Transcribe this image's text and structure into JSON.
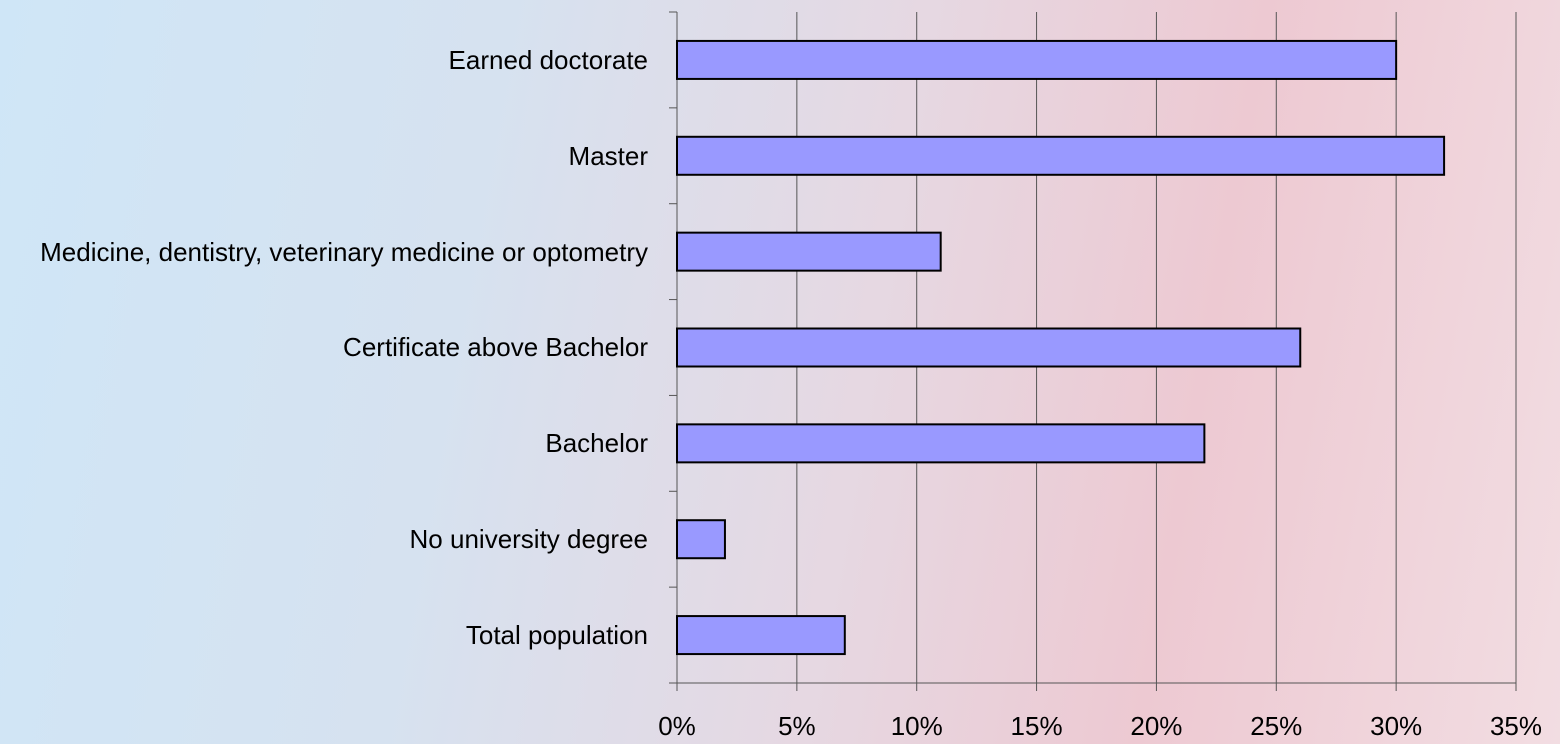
{
  "chart_data": {
    "type": "bar",
    "orientation": "horizontal",
    "categories": [
      "Earned doctorate",
      "Master",
      "Medicine, dentistry, veterinary medicine or optometry",
      "Certificate above Bachelor",
      "Bachelor",
      "No university degree",
      "Total population"
    ],
    "values": [
      30,
      32,
      11,
      26,
      22,
      2,
      7
    ],
    "color": "#9999ff",
    "xlim": [
      0,
      35
    ],
    "xticks": [
      {
        "value": 0,
        "label": "0%"
      },
      {
        "value": 5,
        "label": "5%"
      },
      {
        "value": 10,
        "label": "10%"
      },
      {
        "value": 15,
        "label": "15%"
      },
      {
        "value": 20,
        "label": "20%"
      },
      {
        "value": 25,
        "label": "25%"
      },
      {
        "value": 30,
        "label": "30%"
      },
      {
        "value": 35,
        "label": "35%"
      }
    ],
    "grid": true
  }
}
